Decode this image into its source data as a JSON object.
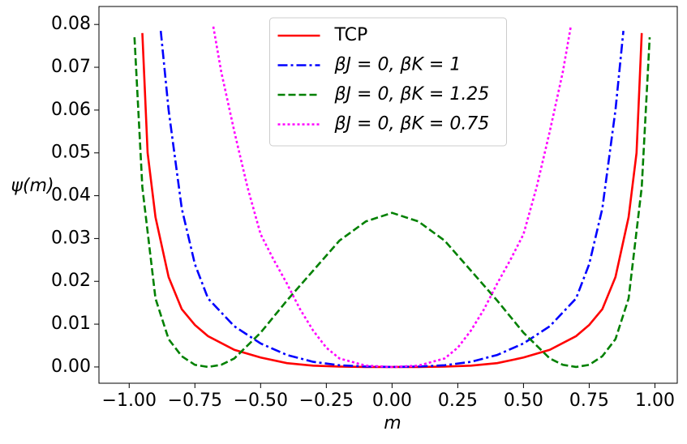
{
  "chart_data": {
    "type": "line",
    "xlabel": "m",
    "ylabel": "ψ(m)",
    "xlim": [
      -1.115,
      1.085
    ],
    "ylim": [
      -0.0038,
      0.0842
    ],
    "xticks": [
      {
        "value": -1,
        "label": "−1.00"
      },
      {
        "value": -0.75,
        "label": "−0.75"
      },
      {
        "value": -0.5,
        "label": "−0.50"
      },
      {
        "value": -0.25,
        "label": "−0.25"
      },
      {
        "value": 0,
        "label": "0.00"
      },
      {
        "value": 0.25,
        "label": "0.25"
      },
      {
        "value": 0.5,
        "label": "0.50"
      },
      {
        "value": 0.75,
        "label": "0.75"
      },
      {
        "value": 1,
        "label": "1.00"
      }
    ],
    "yticks": [
      {
        "value": 0,
        "label": "0.00"
      },
      0.01,
      0.02,
      0.03,
      0.04,
      0.05,
      0.06,
      0.07,
      0.08
    ],
    "legend": "upper center",
    "series": [
      {
        "name": "TCP",
        "color": "#ff0000",
        "linestyle": "solid",
        "x": [
          -0.95,
          -0.93,
          -0.9,
          -0.85,
          -0.8,
          -0.75,
          -0.7,
          -0.6,
          -0.5,
          -0.4,
          -0.3,
          -0.2,
          -0.1,
          0,
          0.1,
          0.2,
          0.3,
          0.4,
          0.5,
          0.6,
          0.7,
          0.75,
          0.8,
          0.85,
          0.9,
          0.93,
          0.95
        ],
        "values": [
          0.078,
          0.05,
          0.035,
          0.021,
          0.0135,
          0.0098,
          0.0072,
          0.004,
          0.0022,
          0.0009,
          0.0003,
          0.0001,
          0,
          0,
          0,
          0.0001,
          0.0003,
          0.0009,
          0.0022,
          0.004,
          0.0072,
          0.0098,
          0.0135,
          0.021,
          0.035,
          0.05,
          0.078
        ]
      },
      {
        "name": "βJ = 0, βK = 1",
        "color": "#0000ff",
        "linestyle": "dashdot",
        "x": [
          -0.88,
          -0.85,
          -0.8,
          -0.75,
          -0.7,
          -0.6,
          -0.5,
          -0.4,
          -0.3,
          -0.2,
          -0.1,
          0,
          0.1,
          0.2,
          0.3,
          0.4,
          0.5,
          0.6,
          0.7,
          0.75,
          0.8,
          0.85,
          0.88
        ],
        "values": [
          0.0785,
          0.06,
          0.037,
          0.024,
          0.016,
          0.0095,
          0.0055,
          0.0028,
          0.0012,
          0.0004,
          0.0001,
          0,
          0.0001,
          0.0004,
          0.0012,
          0.0028,
          0.0055,
          0.0095,
          0.016,
          0.024,
          0.037,
          0.06,
          0.0785
        ]
      },
      {
        "name": "βJ = 0, βK = 1.25",
        "color": "#008000",
        "linestyle": "dashed",
        "x": [
          -0.98,
          -0.95,
          -0.9,
          -0.85,
          -0.8,
          -0.75,
          -0.7,
          -0.65,
          -0.6,
          -0.5,
          -0.4,
          -0.3,
          -0.2,
          -0.1,
          0,
          0.1,
          0.2,
          0.3,
          0.4,
          0.5,
          0.6,
          0.65,
          0.7,
          0.75,
          0.8,
          0.85,
          0.9,
          0.95,
          0.98
        ],
        "values": [
          0.077,
          0.042,
          0.016,
          0.0065,
          0.0025,
          0.0005,
          0,
          0.0005,
          0.002,
          0.008,
          0.0155,
          0.0225,
          0.0295,
          0.034,
          0.036,
          0.034,
          0.0295,
          0.0225,
          0.0155,
          0.008,
          0.002,
          0.0005,
          0,
          0.0005,
          0.0025,
          0.0065,
          0.016,
          0.042,
          0.077
        ]
      },
      {
        "name": "βJ = 0, βK = 0.75",
        "color": "#ff00ff",
        "linestyle": "dotted",
        "x": [
          -0.68,
          -0.65,
          -0.6,
          -0.55,
          -0.5,
          -0.45,
          -0.4,
          -0.35,
          -0.3,
          -0.25,
          -0.2,
          -0.1,
          0,
          0.1,
          0.2,
          0.25,
          0.3,
          0.35,
          0.4,
          0.45,
          0.5,
          0.55,
          0.6,
          0.65,
          0.68
        ],
        "values": [
          0.0795,
          0.069,
          0.055,
          0.042,
          0.031,
          0.025,
          0.0195,
          0.0135,
          0.0085,
          0.0045,
          0.002,
          0.0003,
          0,
          0.0003,
          0.002,
          0.0045,
          0.0085,
          0.0135,
          0.0195,
          0.025,
          0.031,
          0.042,
          0.055,
          0.069,
          0.0795
        ]
      }
    ]
  }
}
